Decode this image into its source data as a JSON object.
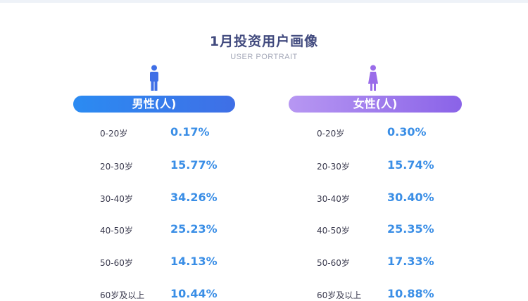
{
  "header": {
    "title": "1月投资用户画像",
    "subtitle": "USER PORTRAIT"
  },
  "male": {
    "label": "男性(人)",
    "icon": "male-person-icon",
    "color": "#3f7be6",
    "rows": [
      {
        "age": "0-20岁",
        "pct": "0.17%"
      },
      {
        "age": "20-30岁",
        "pct": "15.77%"
      },
      {
        "age": "30-40岁",
        "pct": "34.26%"
      },
      {
        "age": "40-50岁",
        "pct": "25.23%"
      },
      {
        "age": "50-60岁",
        "pct": "14.13%"
      },
      {
        "age": "60岁及以上",
        "pct": "10.44%"
      }
    ]
  },
  "female": {
    "label": "女性(人)",
    "icon": "female-person-icon",
    "color": "#9a6ce9",
    "rows": [
      {
        "age": "0-20岁",
        "pct": "0.30%"
      },
      {
        "age": "20-30岁",
        "pct": "15.74%"
      },
      {
        "age": "30-40岁",
        "pct": "30.40%"
      },
      {
        "age": "40-50岁",
        "pct": "25.35%"
      },
      {
        "age": "50-60岁",
        "pct": "17.33%"
      },
      {
        "age": "60岁及以上",
        "pct": "10.88%"
      }
    ]
  },
  "percent_color": "#3a8ee6"
}
